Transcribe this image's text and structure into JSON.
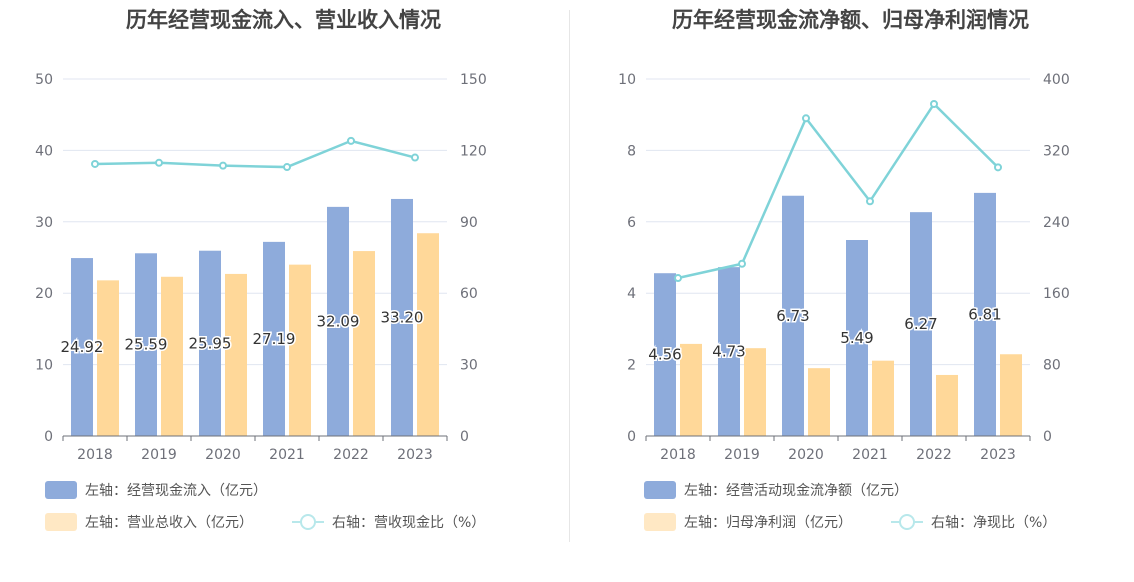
{
  "chart_data": [
    {
      "type": "bar",
      "title": "历年经营现金流入、营业收入情况",
      "categories": [
        "2018",
        "2019",
        "2020",
        "2021",
        "2022",
        "2023"
      ],
      "y_left": {
        "range": [
          0,
          50
        ],
        "ticks": [
          "0",
          "10",
          "20",
          "30",
          "40",
          "50"
        ]
      },
      "y_right": {
        "range": [
          0,
          150
        ],
        "ticks": [
          "0",
          "30",
          "60",
          "90",
          "120",
          "150"
        ]
      },
      "series": [
        {
          "name": "左轴：经营现金流入（亿元）",
          "kind": "bar",
          "axis": "left",
          "color": "#8eabdb",
          "values": [
            24.92,
            25.59,
            25.95,
            27.19,
            32.09,
            33.2
          ],
          "labels": [
            "24.92",
            "25.59",
            "25.95",
            "27.19",
            "32.09",
            "33.20"
          ]
        },
        {
          "name": "左轴：营业总收入（亿元）",
          "kind": "bar",
          "axis": "left",
          "color": "#ffd899",
          "values": [
            21.8,
            22.3,
            22.7,
            24.0,
            25.9,
            28.4
          ]
        },
        {
          "name": "右轴：营收现金比（%）",
          "kind": "line",
          "axis": "right",
          "color": "#7fd3d8",
          "values": [
            114.3,
            114.8,
            113.6,
            113.0,
            124.0,
            117.0
          ]
        }
      ]
    },
    {
      "type": "bar",
      "title": "历年经营现金流净额、归母净利润情况",
      "categories": [
        "2018",
        "2019",
        "2020",
        "2021",
        "2022",
        "2023"
      ],
      "y_left": {
        "range": [
          0,
          10
        ],
        "ticks": [
          "0",
          "2",
          "4",
          "6",
          "8",
          "10"
        ]
      },
      "y_right": {
        "range": [
          0,
          400
        ],
        "ticks": [
          "0",
          "80",
          "160",
          "240",
          "320",
          "400"
        ]
      },
      "series": [
        {
          "name": "左轴：经营活动现金流净额（亿元）",
          "kind": "bar",
          "axis": "left",
          "color": "#8eabdb",
          "values": [
            4.56,
            4.73,
            6.73,
            5.49,
            6.27,
            6.81
          ],
          "labels": [
            "4.56",
            "4.73",
            "6.73",
            "5.49",
            "6.27",
            "6.81"
          ]
        },
        {
          "name": "左轴：归母净利润（亿元）",
          "kind": "bar",
          "axis": "left",
          "color": "#ffd899",
          "values": [
            2.58,
            2.46,
            1.9,
            2.11,
            1.71,
            2.29
          ]
        },
        {
          "name": "右轴：净现比（%）",
          "kind": "line",
          "axis": "right",
          "color": "#7fd3d8",
          "values": [
            177,
            193,
            356,
            263,
            372,
            301
          ]
        }
      ]
    }
  ]
}
